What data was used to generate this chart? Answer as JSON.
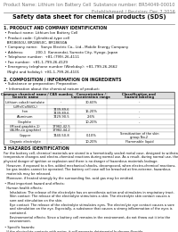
{
  "doc_title": "Safety data sheet for chemical products (SDS)",
  "header_left": "Product Name: Lithium Ion Battery Cell",
  "header_right_1": "Substance number: BR54049-00010",
  "header_right_2": "Establishment / Revision: Dec.7.2016",
  "s1_title": "1. PRODUCT AND COMPANY IDENTIFICATION",
  "s1_lines": [
    " • Product name: Lithium Ion Battery Cell",
    " • Product code: Cylindrical-type cell",
    "   BR18650U, BR18650C, BR18650A",
    " • Company name:   Sanyo Electric Co., Ltd., Mobile Energy Company",
    " • Address:           200-1  Kannondai, Sumoto City, Hyogo, Japan",
    " • Telephone number:  +81-(799)-26-4111",
    " • Fax number:  +81-1-799-26-4129",
    " • Emergency telephone number (Weekday): +81-799-26-2662",
    "   (Night and holiday): +81-1-799-26-4101"
  ],
  "s2_title": "2. COMPOSITION / INFORMATION ON INGREDIENTS",
  "s2_lines": [
    " • Substance or preparation: Preparation",
    "  • Information about the chemical nature of product:"
  ],
  "tbl_headers": [
    "Common chemical name /",
    "CAS number",
    "Concentration /",
    "Classification and"
  ],
  "tbl_headers2": [
    "Generic name",
    "",
    "Concentration range",
    "hazard labeling"
  ],
  "tbl_rows": [
    [
      "Lithium cobalt tantalate",
      "-",
      "30-60%",
      "-"
    ],
    [
      "(LiMn/Co/Ni/O₂)",
      "",
      "",
      ""
    ],
    [
      "Iron",
      "7439-89-6\n7439-89-6",
      "16-20%",
      "-"
    ],
    [
      "Aluminum",
      "7429-90-5",
      "2-6%",
      "-"
    ],
    [
      "Graphite",
      "-",
      "10-20%",
      "-"
    ],
    [
      "(Mixed graphite-1)",
      "17982-42-5",
      "",
      ""
    ],
    [
      "(Al-Mn-co graphite)",
      "17982-44-2",
      "",
      ""
    ],
    [
      "Copper",
      "7440-50-8",
      "0-10%",
      "Sensitization of the skin\ngroup No.2"
    ],
    [
      "Organic electrolyte",
      "-",
      "10-20%",
      "Flammable liquid"
    ]
  ],
  "s3_title": "3 HAZARDS IDENTIFICATION",
  "s3_lines": [
    "For the battery cell, chemical materials are stored in a hermetically sealed metal case, designed to withstand",
    "temperature changes and electro-chemical reactions during normal use. As a result, during normal use, there is no",
    "physical danger of ignition or explosion and there is no danger of hazardous materials leakage.",
    "   However, if exposed to a fire, added mechanical shocks, decomposed, when electro-chemical reactions,",
    "   be gas insides cannot be operated. The battery cell case will be breached at fire-extreme, hazardous",
    "   materials may be released.",
    "   Moreover, if heated strongly by the surrounding fire, acid gas may be emitted.",
    "",
    " • Most important hazard and effects:",
    "   Human health effects:",
    "      Inhalation: The release of the electrolyte has an anesthesia action and stimulates in respiratory tract.",
    "      Skin contact: The release of the electrolyte stimulates a skin. The electrolyte skin contact causes a",
    "      sore and stimulation on the skin.",
    "      Eye contact: The release of the electrolyte stimulates eyes. The electrolyte eye contact causes a sore",
    "      and stimulation on the eye. Especially, a substance that causes a strong inflammation of the eyes is",
    "      contained.",
    "      Environmental effects: Since a battery cell remains in the environment, do not throw out it into the",
    "      environment.",
    "",
    " • Specific hazards:",
    "   If the electrolyte contacts with water, it will generate detrimental hydrogen fluoride.",
    "   Since the used electrolyte is inflammable liquid, do not bring close to fire."
  ],
  "bg_color": "#ffffff",
  "text_color": "#111111",
  "gray_color": "#777777",
  "line_color": "#888888",
  "table_bg": "#dddddd"
}
